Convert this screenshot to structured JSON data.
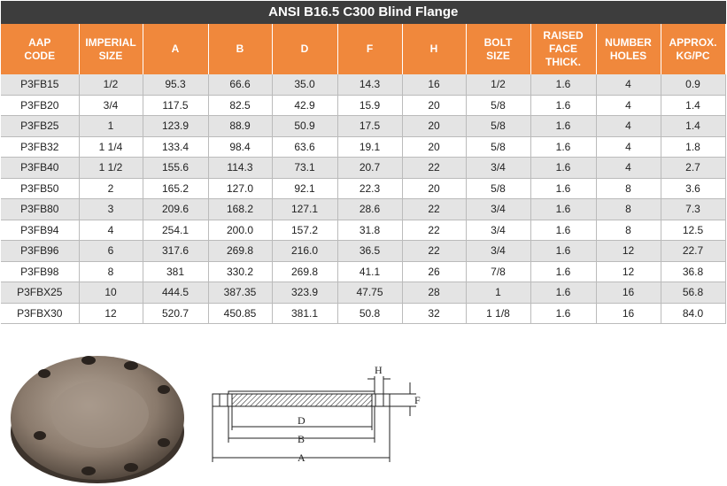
{
  "table": {
    "title": "ANSI B16.5 C300 Blind Flange",
    "header": [
      "AAP\nCODE",
      "IMPERIAL\nSIZE",
      "A",
      "B",
      "D",
      "F",
      "H",
      "BOLT\nSIZE",
      "RAISED\nFACE\nTHICK.",
      "NUMBER\nHOLES",
      "APPROX.\nKG/PC"
    ],
    "rows": [
      [
        "P3FB15",
        "1/2",
        "95.3",
        "66.6",
        "35.0",
        "14.3",
        "16",
        "1/2",
        "1.6",
        "4",
        "0.9"
      ],
      [
        "P3FB20",
        "3/4",
        "117.5",
        "82.5",
        "42.9",
        "15.9",
        "20",
        "5/8",
        "1.6",
        "4",
        "1.4"
      ],
      [
        "P3FB25",
        "1",
        "123.9",
        "88.9",
        "50.9",
        "17.5",
        "20",
        "5/8",
        "1.6",
        "4",
        "1.4"
      ],
      [
        "P3FB32",
        "1 1/4",
        "133.4",
        "98.4",
        "63.6",
        "19.1",
        "20",
        "5/8",
        "1.6",
        "4",
        "1.8"
      ],
      [
        "P3FB40",
        "1 1/2",
        "155.6",
        "114.3",
        "73.1",
        "20.7",
        "22",
        "3/4",
        "1.6",
        "4",
        "2.7"
      ],
      [
        "P3FB50",
        "2",
        "165.2",
        "127.0",
        "92.1",
        "22.3",
        "20",
        "5/8",
        "1.6",
        "8",
        "3.6"
      ],
      [
        "P3FB80",
        "3",
        "209.6",
        "168.2",
        "127.1",
        "28.6",
        "22",
        "3/4",
        "1.6",
        "8",
        "7.3"
      ],
      [
        "P3FB94",
        "4",
        "254.1",
        "200.0",
        "157.2",
        "31.8",
        "22",
        "3/4",
        "1.6",
        "8",
        "12.5"
      ],
      [
        "P3FB96",
        "6",
        "317.6",
        "269.8",
        "216.0",
        "36.5",
        "22",
        "3/4",
        "1.6",
        "12",
        "22.7"
      ],
      [
        "P3FB98",
        "8",
        "381",
        "330.2",
        "269.8",
        "41.1",
        "26",
        "7/8",
        "1.6",
        "12",
        "36.8"
      ],
      [
        "P3FBX25",
        "10",
        "444.5",
        "387.35",
        "323.9",
        "47.75",
        "28",
        "1",
        "1.6",
        "16",
        "56.8"
      ],
      [
        "P3FBX30",
        "12",
        "520.7",
        "450.85",
        "381.1",
        "50.8",
        "32",
        "1 1/8",
        "1.6",
        "16",
        "84.0"
      ]
    ]
  },
  "diagram": {
    "labels": {
      "H": "H",
      "F": "F",
      "D": "D",
      "B": "B",
      "A": "A"
    }
  }
}
